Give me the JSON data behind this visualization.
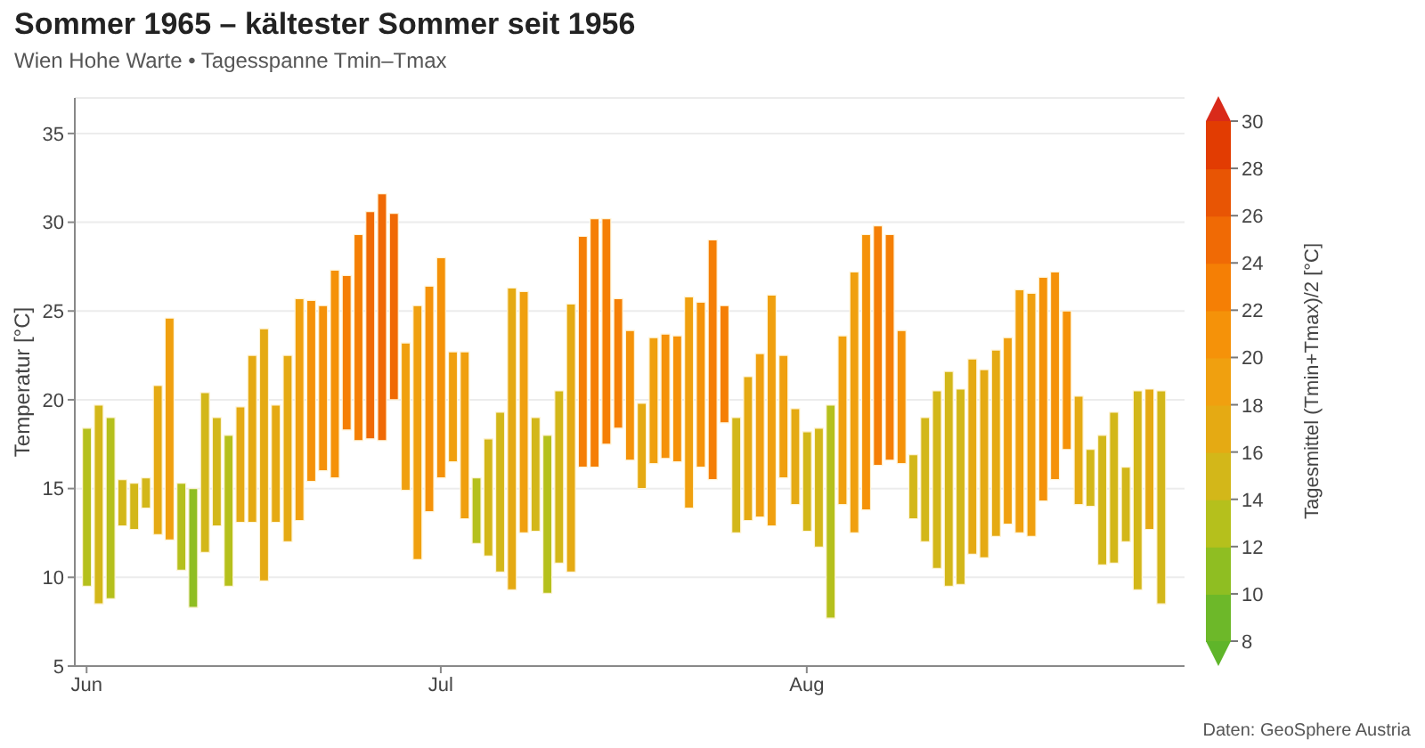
{
  "chart_data": {
    "type": "bar",
    "title": "Sommer 1965 – kältester Sommer seit 1956",
    "subtitle": "Wien Hohe Warte • Tagesspanne Tmin–Tmax",
    "ylabel": "Temperatur [°C]",
    "clabel": "Tagesmittel (Tmin+Tmax)/2 [°C]",
    "annotations": [
      "Daten: GeoSphere Austria"
    ],
    "x": [
      "1965-06-01",
      "1965-06-02",
      "1965-06-03",
      "1965-06-04",
      "1965-06-05",
      "1965-06-06",
      "1965-06-07",
      "1965-06-08",
      "1965-06-09",
      "1965-06-10",
      "1965-06-11",
      "1965-06-12",
      "1965-06-13",
      "1965-06-14",
      "1965-06-15",
      "1965-06-16",
      "1965-06-17",
      "1965-06-18",
      "1965-06-19",
      "1965-06-20",
      "1965-06-21",
      "1965-06-22",
      "1965-06-23",
      "1965-06-24",
      "1965-06-25",
      "1965-06-26",
      "1965-06-27",
      "1965-06-28",
      "1965-06-29",
      "1965-06-30",
      "1965-07-01",
      "1965-07-02",
      "1965-07-03",
      "1965-07-04",
      "1965-07-05",
      "1965-07-06",
      "1965-07-07",
      "1965-07-08",
      "1965-07-09",
      "1965-07-10",
      "1965-07-11",
      "1965-07-12",
      "1965-07-13",
      "1965-07-14",
      "1965-07-15",
      "1965-07-16",
      "1965-07-17",
      "1965-07-18",
      "1965-07-19",
      "1965-07-20",
      "1965-07-21",
      "1965-07-22",
      "1965-07-23",
      "1965-07-24",
      "1965-07-25",
      "1965-07-26",
      "1965-07-27",
      "1965-07-28",
      "1965-07-29",
      "1965-07-30",
      "1965-07-31",
      "1965-08-01",
      "1965-08-02",
      "1965-08-03",
      "1965-08-04",
      "1965-08-05",
      "1965-08-06",
      "1965-08-07",
      "1965-08-08",
      "1965-08-09",
      "1965-08-10",
      "1965-08-11",
      "1965-08-12",
      "1965-08-13",
      "1965-08-14",
      "1965-08-15",
      "1965-08-16",
      "1965-08-17",
      "1965-08-18",
      "1965-08-19",
      "1965-08-20",
      "1965-08-21",
      "1965-08-22",
      "1965-08-23",
      "1965-08-24",
      "1965-08-25",
      "1965-08-26",
      "1965-08-27",
      "1965-08-28",
      "1965-08-29",
      "1965-08-30",
      "1965-08-31"
    ],
    "base": [
      9.5,
      8.5,
      8.8,
      12.9,
      12.7,
      13.9,
      12.4,
      12.1,
      10.4,
      8.3,
      11.4,
      12.9,
      9.5,
      13.1,
      13.1,
      9.8,
      13.1,
      12.0,
      13.2,
      15.4,
      16.0,
      15.6,
      18.3,
      17.7,
      17.8,
      17.7,
      20.0,
      14.9,
      11.0,
      13.7,
      15.6,
      16.5,
      13.3,
      11.9,
      11.2,
      10.3,
      9.3,
      12.5,
      12.6,
      9.1,
      10.8,
      10.3,
      16.2,
      16.2,
      17.5,
      18.4,
      16.6,
      15.0,
      16.4,
      16.7,
      16.5,
      13.9,
      16.2,
      15.5,
      18.7,
      12.5,
      13.2,
      13.4,
      12.9,
      15.6,
      14.1,
      12.6,
      11.7,
      7.7,
      14.1,
      12.5,
      13.8,
      16.3,
      16.6,
      16.4,
      13.3,
      12.0,
      10.5,
      9.5,
      9.6,
      11.3,
      11.1,
      12.3,
      13.0,
      12.5,
      12.3,
      14.3,
      15.5,
      17.2,
      14.1,
      14.0,
      10.7,
      10.8,
      12.0,
      9.3,
      12.7,
      8.5
    ],
    "values": [
      8.9,
      11.2,
      10.2,
      2.6,
      2.6,
      1.7,
      8.4,
      12.5,
      4.9,
      6.7,
      9.0,
      6.1,
      8.5,
      6.5,
      9.4,
      14.2,
      6.6,
      10.5,
      12.5,
      10.2,
      9.3,
      11.7,
      8.7,
      11.6,
      12.8,
      13.9,
      10.5,
      8.3,
      14.3,
      12.7,
      12.4,
      6.2,
      9.4,
      3.7,
      6.6,
      9.0,
      17.0,
      13.6,
      6.4,
      8.9,
      9.7,
      15.1,
      13.0,
      14.0,
      12.7,
      7.3,
      7.3,
      4.8,
      7.1,
      7.0,
      7.1,
      11.9,
      9.3,
      13.5,
      6.6,
      6.5,
      8.1,
      9.2,
      13.0,
      6.9,
      5.4,
      5.6,
      6.7,
      12.0,
      9.5,
      14.7,
      15.5,
      13.5,
      12.7,
      7.5,
      3.6,
      7.0,
      10.0,
      12.1,
      11.0,
      11.0,
      10.6,
      10.5,
      10.5,
      13.7,
      13.7,
      12.6,
      11.7,
      7.8,
      6.1,
      3.2,
      7.3,
      8.5,
      4.2,
      11.2,
      7.9,
      12.0
    ],
    "xlim": [
      "1965-05-31",
      "1965-09-02"
    ],
    "xticks": [
      {
        "value": "1965-06-01",
        "label": "Jun"
      },
      {
        "value": "1965-07-01",
        "label": "Jul"
      },
      {
        "value": "1965-08-01",
        "label": "Aug"
      }
    ],
    "ylim": [
      5,
      37
    ],
    "yticks": [
      5,
      10,
      15,
      20,
      25,
      30,
      35
    ],
    "grid": "y",
    "clim": [
      8,
      30
    ],
    "cticks": [
      8,
      10,
      12,
      14,
      16,
      18,
      20,
      22,
      24,
      26,
      28,
      30
    ]
  }
}
